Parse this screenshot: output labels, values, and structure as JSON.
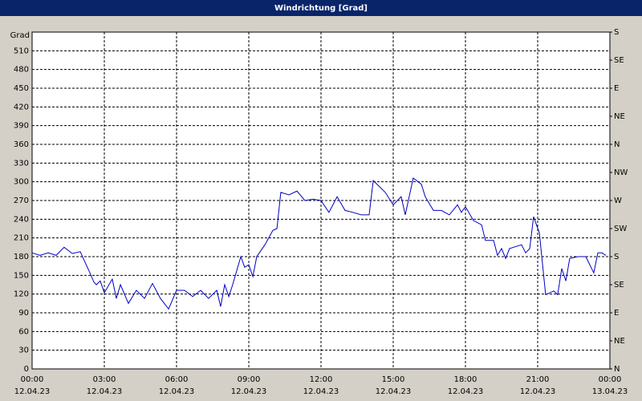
{
  "chart_data": {
    "type": "line",
    "title": "Windrichtung [Grad]",
    "ylabel": "Grad",
    "x": [
      0.0,
      0.33,
      0.67,
      1.0,
      1.33,
      1.67,
      2.0,
      2.4,
      2.57,
      2.67,
      2.83,
      3.0,
      3.33,
      3.5,
      3.67,
      4.0,
      4.33,
      4.67,
      5.0,
      5.33,
      5.67,
      6.0,
      6.33,
      6.67,
      7.0,
      7.33,
      7.67,
      7.83,
      8.0,
      8.17,
      8.33,
      8.67,
      8.83,
      9.0,
      9.17,
      9.33,
      9.67,
      10.0,
      10.17,
      10.33,
      10.67,
      11.0,
      11.33,
      11.67,
      12.0,
      12.33,
      12.67,
      13.0,
      13.33,
      13.67,
      14.0,
      14.17,
      14.67,
      15.0,
      15.33,
      15.5,
      15.83,
      16.17,
      16.33,
      16.67,
      17.0,
      17.33,
      17.67,
      17.83,
      18.0,
      18.33,
      18.67,
      18.83,
      19.17,
      19.33,
      19.5,
      19.67,
      19.83,
      20.33,
      20.5,
      20.67,
      20.83,
      21.07,
      21.33,
      21.67,
      21.83,
      22.0,
      22.17,
      22.33,
      22.67,
      23.0,
      23.33,
      23.5,
      23.67,
      23.83
    ],
    "series": [
      {
        "name": "Windrichtung",
        "color": "#0000c0",
        "values": [
          186,
          182,
          186,
          182,
          195,
          185,
          188,
          154,
          139,
          135,
          141,
          122,
          144,
          113,
          135,
          105,
          126,
          113,
          137,
          113,
          96,
          126,
          126,
          116,
          126,
          113,
          126,
          100,
          135,
          116,
          135,
          180,
          163,
          167,
          148,
          180,
          199,
          222,
          225,
          283,
          279,
          285,
          270,
          272,
          270,
          251,
          276,
          254,
          251,
          247,
          247,
          302,
          283,
          263,
          276,
          247,
          306,
          296,
          276,
          254,
          254,
          247,
          263,
          251,
          260,
          238,
          231,
          206,
          206,
          182,
          193,
          177,
          193,
          199,
          186,
          193,
          244,
          218,
          119,
          125,
          119,
          161,
          141,
          177,
          180,
          180,
          154,
          186,
          186,
          182
        ]
      }
    ],
    "xlim": [
      0,
      24
    ],
    "xticks": [
      {
        "value": 0,
        "label": "00:00"
      },
      {
        "value": 3,
        "label": "03:00"
      },
      {
        "value": 6,
        "label": "06:00"
      },
      {
        "value": 9,
        "label": "09:00"
      },
      {
        "value": 12,
        "label": "12:00"
      },
      {
        "value": 15,
        "label": "15:00"
      },
      {
        "value": 18,
        "label": "18:00"
      },
      {
        "value": 21,
        "label": "21:00"
      },
      {
        "value": 24,
        "label": "00:00"
      }
    ],
    "xtick_dates": [
      "12.04.23",
      "12.04.23",
      "12.04.23",
      "12.04.23",
      "12.04.23",
      "12.04.23",
      "12.04.23",
      "12.04.23",
      "13.04.23"
    ],
    "ylim": [
      0,
      540
    ],
    "yticks": [
      0,
      30,
      60,
      90,
      120,
      150,
      180,
      210,
      240,
      270,
      300,
      330,
      360,
      390,
      420,
      450,
      480,
      510
    ],
    "y2lim": [
      0,
      540
    ],
    "y2ticks": [
      {
        "value": 0,
        "label": "N"
      },
      {
        "value": 45,
        "label": "NE"
      },
      {
        "value": 90,
        "label": "E"
      },
      {
        "value": 135,
        "label": "SE"
      },
      {
        "value": 180,
        "label": "S"
      },
      {
        "value": 225,
        "label": "SW"
      },
      {
        "value": 270,
        "label": "W"
      },
      {
        "value": 315,
        "label": "NW"
      },
      {
        "value": 360,
        "label": "N"
      },
      {
        "value": 405,
        "label": "NE"
      },
      {
        "value": 450,
        "label": "E"
      },
      {
        "value": 495,
        "label": "SE"
      },
      {
        "value": 540,
        "label": "S"
      }
    ],
    "grid": true
  }
}
